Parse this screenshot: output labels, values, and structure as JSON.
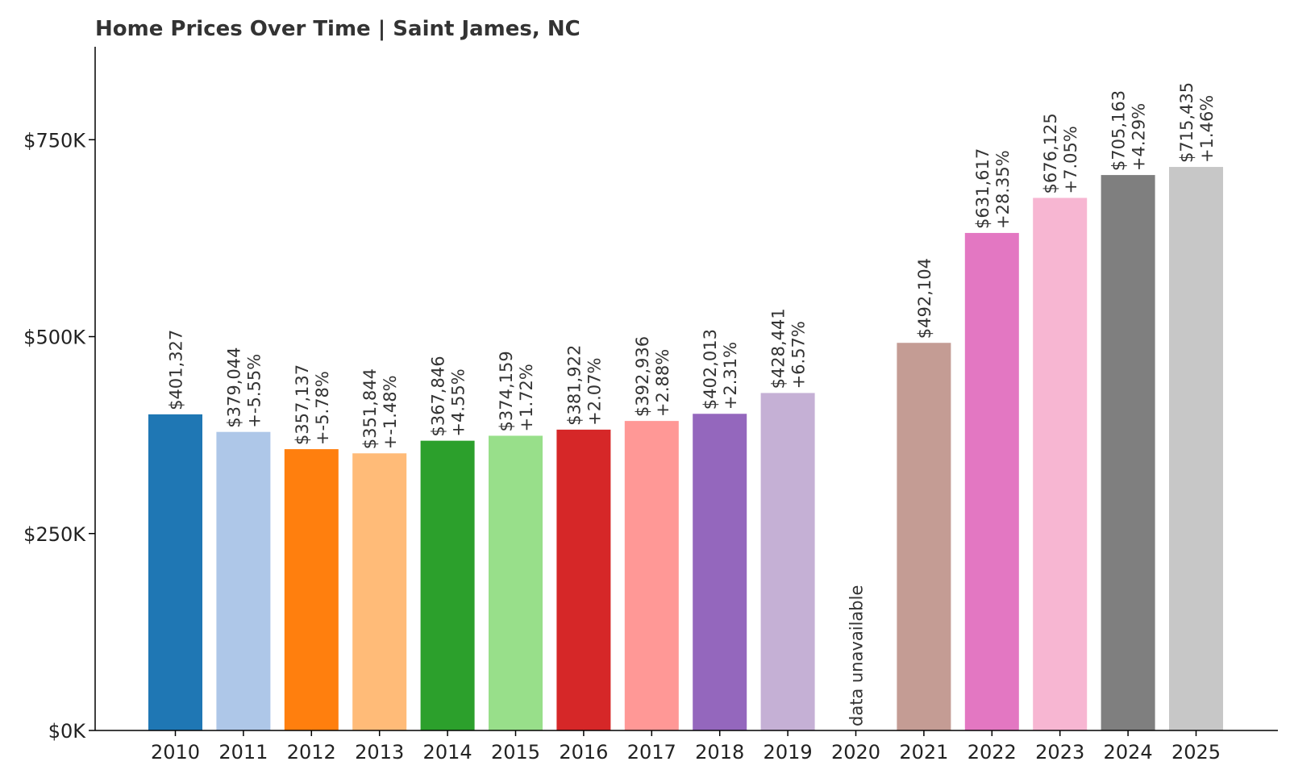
{
  "chart_data": {
    "type": "bar",
    "title": "Home Prices Over Time | Saint James, NC",
    "xlabel": "",
    "ylabel": "",
    "ylim": [
      0,
      868000
    ],
    "yticks": [
      {
        "value": 0,
        "label": "$0K"
      },
      {
        "value": 250000,
        "label": "$250K"
      },
      {
        "value": 500000,
        "label": "$500K"
      },
      {
        "value": 750000,
        "label": "$750K"
      }
    ],
    "grid": false,
    "bars": [
      {
        "year": "2010",
        "value": 401327,
        "value_label": "$401,327",
        "change_label": "",
        "color": "#1f77b4"
      },
      {
        "year": "2011",
        "value": 379044,
        "value_label": "$379,044",
        "change_label": "+-5.55%",
        "color": "#aec7e8"
      },
      {
        "year": "2012",
        "value": 357137,
        "value_label": "$357,137",
        "change_label": "+-5.78%",
        "color": "#ff7f0e"
      },
      {
        "year": "2013",
        "value": 351844,
        "value_label": "$351,844",
        "change_label": "+-1.48%",
        "color": "#ffbb78"
      },
      {
        "year": "2014",
        "value": 367846,
        "value_label": "$367,846",
        "change_label": "+4.55%",
        "color": "#2ca02c"
      },
      {
        "year": "2015",
        "value": 374159,
        "value_label": "$374,159",
        "change_label": "+1.72%",
        "color": "#98df8a"
      },
      {
        "year": "2016",
        "value": 381922,
        "value_label": "$381,922",
        "change_label": "+2.07%",
        "color": "#d62728"
      },
      {
        "year": "2017",
        "value": 392936,
        "value_label": "$392,936",
        "change_label": "+2.88%",
        "color": "#ff9896"
      },
      {
        "year": "2018",
        "value": 402013,
        "value_label": "$402,013",
        "change_label": "+2.31%",
        "color": "#9467bd"
      },
      {
        "year": "2019",
        "value": 428441,
        "value_label": "$428,441",
        "change_label": "+6.57%",
        "color": "#c5b0d5"
      },
      {
        "year": "2020",
        "value": null,
        "value_label": "data unavailable",
        "change_label": "",
        "color": "#8c564b"
      },
      {
        "year": "2021",
        "value": 492104,
        "value_label": "$492,104",
        "change_label": "",
        "color": "#c49c94"
      },
      {
        "year": "2022",
        "value": 631617,
        "value_label": "$631,617",
        "change_label": "+28.35%",
        "color": "#e377c2"
      },
      {
        "year": "2023",
        "value": 676125,
        "value_label": "$676,125",
        "change_label": "+7.05%",
        "color": "#f7b6d2"
      },
      {
        "year": "2024",
        "value": 705163,
        "value_label": "$705,163",
        "change_label": "+4.29%",
        "color": "#7f7f7f"
      },
      {
        "year": "2025",
        "value": 715435,
        "value_label": "$715,435",
        "change_label": "+1.46%",
        "color": "#c7c7c7"
      }
    ]
  }
}
